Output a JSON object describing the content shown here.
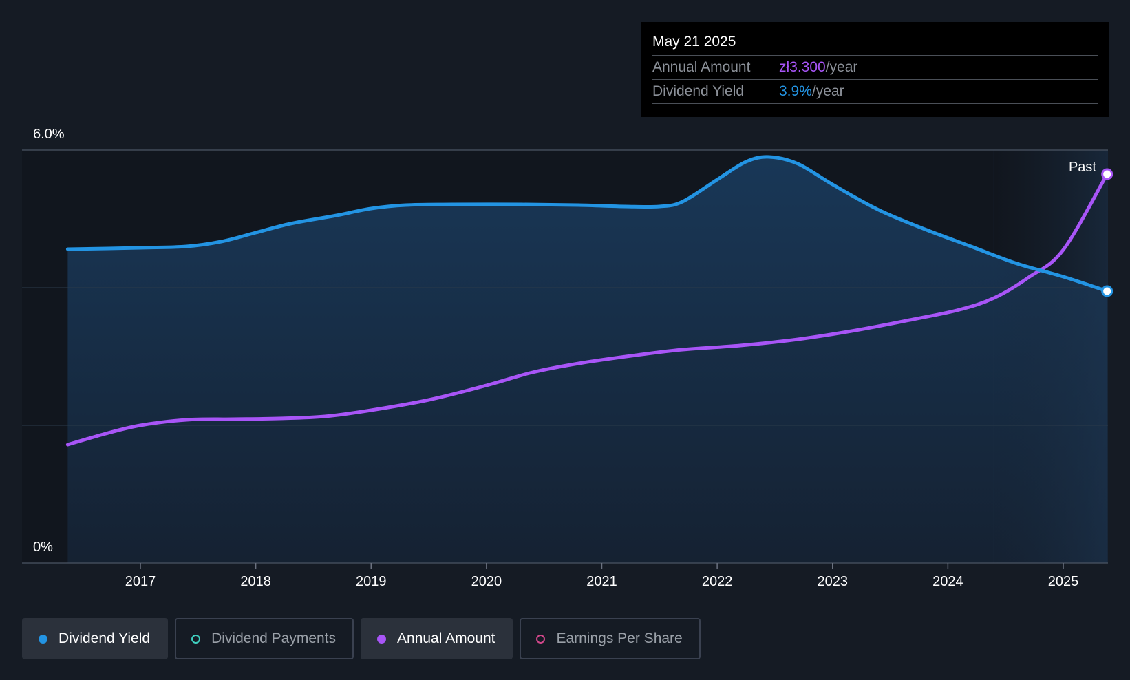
{
  "tooltip": {
    "date": "May 21 2025",
    "rows": [
      {
        "label": "Annual Amount",
        "value": "zł3.300",
        "unit": "/year"
      },
      {
        "label": "Dividend Yield",
        "value": "3.9%",
        "unit": "/year"
      }
    ]
  },
  "past_label": "Past",
  "legend": [
    {
      "label": "Dividend Yield",
      "color": "#2394e3",
      "filled": true,
      "active": true
    },
    {
      "label": "Dividend Payments",
      "color": "#3fd0c0",
      "filled": false,
      "active": false
    },
    {
      "label": "Annual Amount",
      "color": "#a855f7",
      "filled": true,
      "active": true
    },
    {
      "label": "Earnings Per Share",
      "color": "#d1478a",
      "filled": false,
      "active": false
    }
  ],
  "colors": {
    "background": "#151b24",
    "dividend_yield": "#2394e3",
    "annual_amount": "#a855f7"
  },
  "chart_data": {
    "type": "area",
    "y_tick_labels": [
      "6.0%",
      "0%"
    ],
    "ylim": [
      0,
      6.0
    ],
    "xlim": [
      2016.0,
      2025.38
    ],
    "x_ticks": [
      2017,
      2018,
      2019,
      2020,
      2021,
      2022,
      2023,
      2024,
      2025
    ],
    "grid": true,
    "past_region_start": 2024.4,
    "series": [
      {
        "name": "Dividend Yield",
        "axis": "left",
        "points": [
          [
            2016.37,
            4.56
          ],
          [
            2017.0,
            4.58
          ],
          [
            2017.4,
            4.6
          ],
          [
            2017.7,
            4.67
          ],
          [
            2018.0,
            4.8
          ],
          [
            2018.3,
            4.93
          ],
          [
            2018.7,
            5.05
          ],
          [
            2019.0,
            5.15
          ],
          [
            2019.3,
            5.2
          ],
          [
            2019.7,
            5.21
          ],
          [
            2020.3,
            5.21
          ],
          [
            2020.8,
            5.2
          ],
          [
            2021.2,
            5.18
          ],
          [
            2021.5,
            5.18
          ],
          [
            2021.7,
            5.25
          ],
          [
            2022.0,
            5.57
          ],
          [
            2022.25,
            5.83
          ],
          [
            2022.45,
            5.9
          ],
          [
            2022.7,
            5.8
          ],
          [
            2023.0,
            5.5
          ],
          [
            2023.4,
            5.13
          ],
          [
            2023.8,
            4.85
          ],
          [
            2024.2,
            4.6
          ],
          [
            2024.6,
            4.35
          ],
          [
            2025.0,
            4.16
          ],
          [
            2025.38,
            3.95
          ]
        ]
      },
      {
        "name": "Annual Amount",
        "axis": "right",
        "points": [
          [
            2016.37,
            1.72
          ],
          [
            2016.7,
            1.88
          ],
          [
            2017.0,
            2.0
          ],
          [
            2017.4,
            2.08
          ],
          [
            2017.8,
            2.09
          ],
          [
            2018.2,
            2.1
          ],
          [
            2018.6,
            2.13
          ],
          [
            2019.0,
            2.22
          ],
          [
            2019.5,
            2.37
          ],
          [
            2020.0,
            2.58
          ],
          [
            2020.4,
            2.77
          ],
          [
            2020.8,
            2.9
          ],
          [
            2021.3,
            3.02
          ],
          [
            2021.7,
            3.1
          ],
          [
            2022.2,
            3.16
          ],
          [
            2022.7,
            3.25
          ],
          [
            2023.2,
            3.38
          ],
          [
            2023.7,
            3.54
          ],
          [
            2024.1,
            3.68
          ],
          [
            2024.4,
            3.85
          ],
          [
            2024.7,
            4.15
          ],
          [
            2025.0,
            4.55
          ],
          [
            2025.38,
            5.65
          ]
        ]
      }
    ]
  }
}
